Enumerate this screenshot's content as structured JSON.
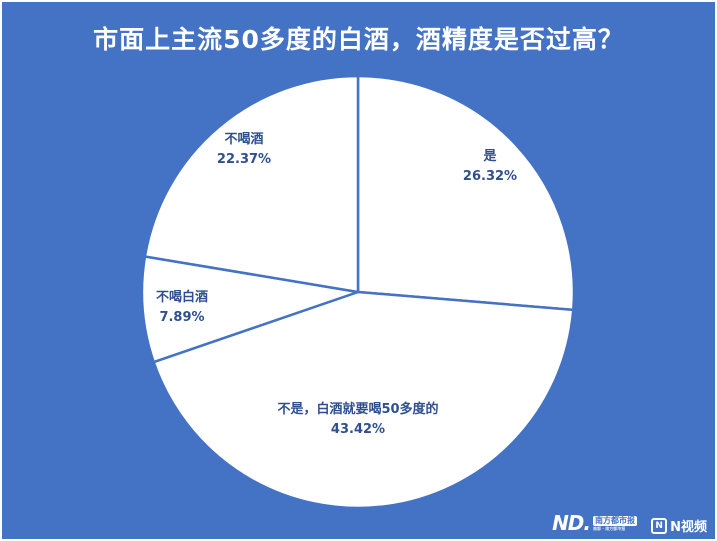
{
  "colors": {
    "background": "#4472c4",
    "slice_fill": "#ffffff",
    "slice_border": "#4472c4",
    "label": "#2f4f8f"
  },
  "chart_data": {
    "type": "pie",
    "title": "市面上主流50多度的白酒，酒精度是否过高？",
    "slices": [
      {
        "label": "是",
        "value": 26.32,
        "display": "26.32%"
      },
      {
        "label": "不是，白酒就要喝50多度的",
        "value": 43.42,
        "display": "43.42%"
      },
      {
        "label": "不喝白酒",
        "value": 7.89,
        "display": "7.89%"
      },
      {
        "label": "不喝酒",
        "value": 22.37,
        "display": "22.37%"
      }
    ],
    "start": "12 o'clock",
    "direction": "clockwise",
    "legend": "none"
  },
  "watermarks": {
    "nd_mark": "ND.",
    "nd_name": "南方都市报",
    "nd_sub": "南都 · 南方都市报",
    "nv_badge": "N",
    "nv_text": "N视频"
  }
}
